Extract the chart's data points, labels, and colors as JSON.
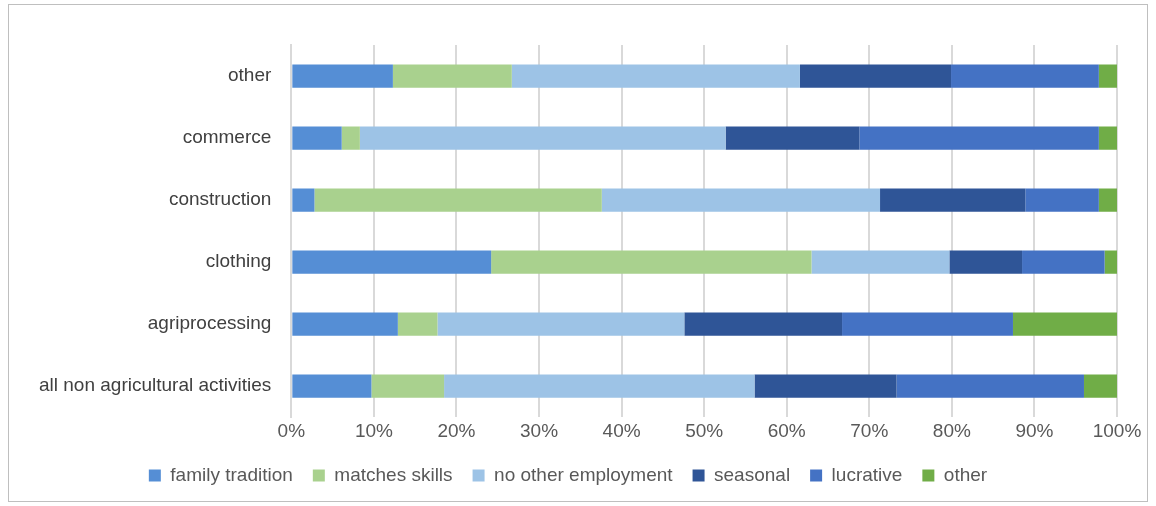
{
  "chart_data": {
    "type": "bar",
    "orientation": "horizontal",
    "stacked": true,
    "categories": [
      "other",
      "commerce",
      "construction",
      "clothing",
      "agriprocessing",
      "all non agricultural activities"
    ],
    "series": [
      {
        "name": "family tradition",
        "color": "#558ed5",
        "values": [
          12.3,
          6.1,
          2.8,
          24.2,
          12.9,
          9.7
        ]
      },
      {
        "name": "matches skills",
        "color": "#a9d18e",
        "values": [
          14.4,
          2.2,
          34.8,
          38.8,
          4.8,
          8.8
        ]
      },
      {
        "name": "no other employment",
        "color": "#9dc3e6",
        "values": [
          34.9,
          44.3,
          33.7,
          16.7,
          29.9,
          37.6
        ]
      },
      {
        "name": "seasonal",
        "color": "#2f5597",
        "values": [
          18.3,
          16.2,
          17.6,
          8.8,
          19.1,
          17.2
        ]
      },
      {
        "name": "lucrative",
        "color": "#4472c4",
        "values": [
          17.9,
          29.0,
          8.9,
          10.0,
          20.7,
          22.7
        ]
      },
      {
        "name": "other",
        "color": "#70ad47",
        "values": [
          2.2,
          2.2,
          2.2,
          1.5,
          12.6,
          4.0
        ]
      }
    ],
    "xlim": [
      0,
      100
    ],
    "xticks": [
      {
        "value": 0,
        "label": "0%"
      },
      {
        "value": 10,
        "label": "10%"
      },
      {
        "value": 20,
        "label": "20%"
      },
      {
        "value": 30,
        "label": "30%"
      },
      {
        "value": 40,
        "label": "40%"
      },
      {
        "value": 50,
        "label": "50%"
      },
      {
        "value": 60,
        "label": "60%"
      },
      {
        "value": 70,
        "label": "70%"
      },
      {
        "value": 80,
        "label": "80%"
      },
      {
        "value": 90,
        "label": "90%"
      },
      {
        "value": 100,
        "label": "100%"
      }
    ],
    "grid": "x",
    "legend": "bottom"
  }
}
